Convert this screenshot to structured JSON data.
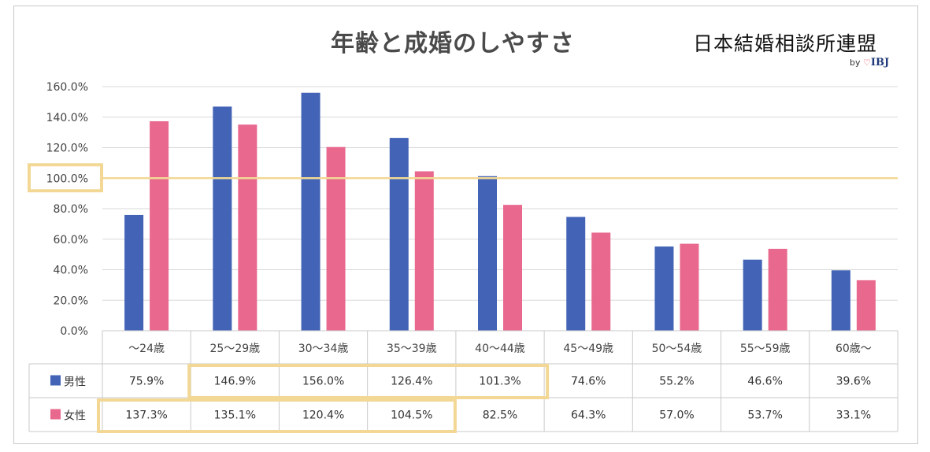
{
  "title": "年齢と成婚のしやすさ",
  "brand": {
    "name": "日本結婚相談所連盟",
    "by": "by",
    "logo_text": "IBJ"
  },
  "colors": {
    "male": "#4263b6",
    "female": "#e8688e",
    "highlight": "#f2d894",
    "grid": "#d9d9d9",
    "axis": "#bfbfbf"
  },
  "chart_data": {
    "type": "bar",
    "categories": [
      "〜24歳",
      "25〜29歳",
      "30〜34歳",
      "35〜39歳",
      "40〜44歳",
      "45〜49歳",
      "50〜54歳",
      "55〜59歳",
      "60歳〜"
    ],
    "series": [
      {
        "name": "男性",
        "values": [
          75.9,
          146.9,
          156.0,
          126.4,
          101.3,
          74.6,
          55.2,
          46.6,
          39.6
        ]
      },
      {
        "name": "女性",
        "values": [
          137.3,
          135.1,
          120.4,
          104.5,
          82.5,
          64.3,
          57.0,
          53.7,
          33.1
        ]
      }
    ],
    "ylim": [
      0,
      160
    ],
    "yticks": [
      "0.0%",
      "20.0%",
      "40.0%",
      "60.0%",
      "80.0%",
      "100.0%",
      "120.0%",
      "140.0%",
      "160.0%"
    ],
    "reference_line": 100,
    "table": {
      "rows": [
        {
          "label": "男性",
          "cells": [
            "75.9%",
            "146.9%",
            "156.0%",
            "126.4%",
            "101.3%",
            "74.6%",
            "55.2%",
            "46.6%",
            "39.6%"
          ]
        },
        {
          "label": "女性",
          "cells": [
            "137.3%",
            "135.1%",
            "120.4%",
            "104.5%",
            "82.5%",
            "64.3%",
            "57.0%",
            "53.7%",
            "33.1%"
          ]
        }
      ]
    },
    "grid": true,
    "legend": "in-table"
  }
}
